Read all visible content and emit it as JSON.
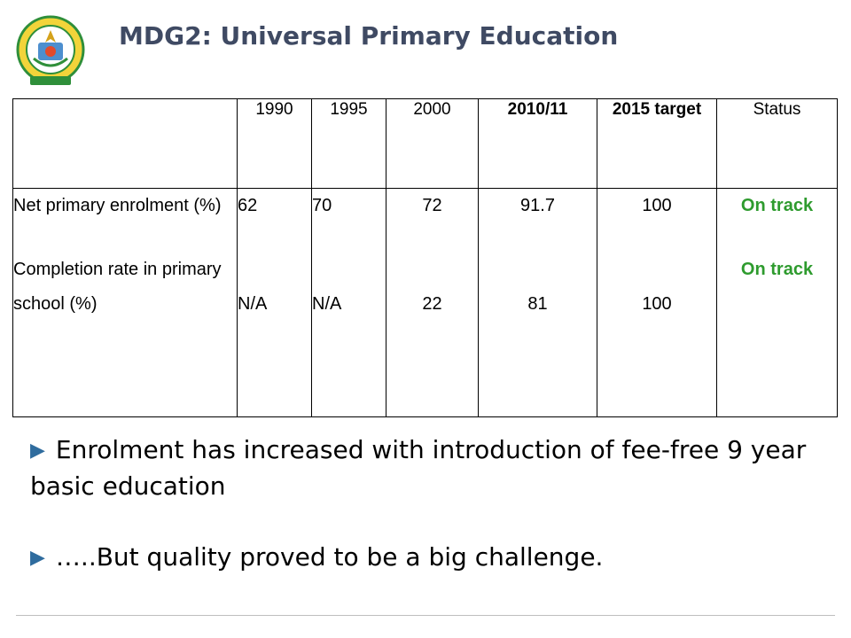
{
  "slide": {
    "title": "MDG2: Universal Primary Education",
    "emblem": "rwanda-coat-of-arms"
  },
  "table": {
    "headers": [
      "",
      "1990",
      "1995",
      "2000",
      "2010/11",
      "2015 target",
      "Status"
    ],
    "rows": [
      {
        "indicator": "Net primary enrolment (%)",
        "values": [
          "62",
          "70",
          "72",
          "91.7",
          "100"
        ],
        "status": "On track"
      },
      {
        "indicator": "Completion rate in primary school (%)",
        "values": [
          "N/A",
          "N/A",
          "22",
          "81",
          "100"
        ],
        "status": "On track"
      }
    ]
  },
  "bullets": [
    "Enrolment has increased with introduction of fee-free 9 year basic education",
    "…..But quality proved to be a big challenge."
  ],
  "colors": {
    "title": "#3f4a63",
    "status": "#2e9b2e",
    "bullet": "#2f6c9e"
  }
}
